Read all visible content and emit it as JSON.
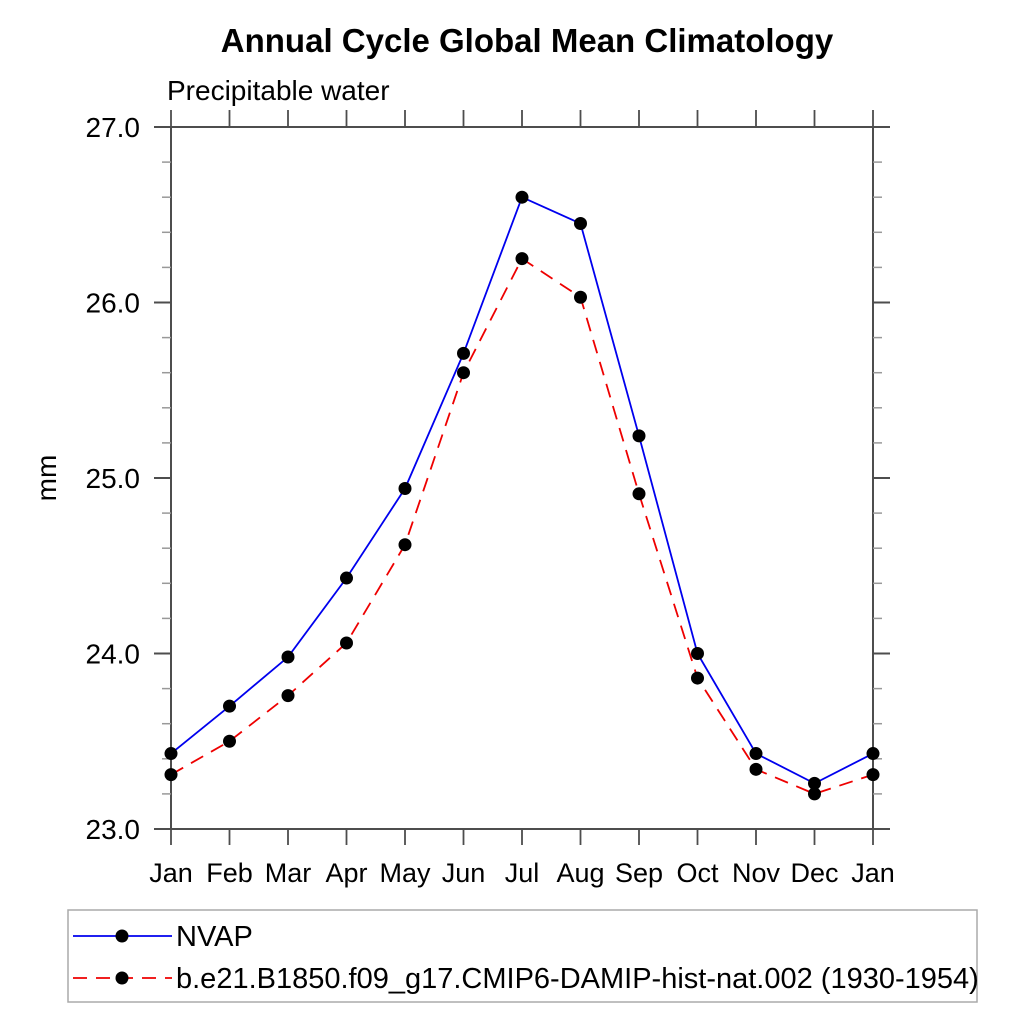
{
  "page": {
    "title": "Annual Cycle Global Mean Climatology",
    "subtitle": "Precipitable water"
  },
  "chart_data": {
    "type": "line",
    "title": "Annual Cycle Global Mean Climatology",
    "subtitle": "Precipitable water",
    "xlabel": "",
    "ylabel": "mm",
    "categories": [
      "Jan",
      "Feb",
      "Mar",
      "Apr",
      "May",
      "Jun",
      "Jul",
      "Aug",
      "Sep",
      "Oct",
      "Nov",
      "Dec",
      "Jan"
    ],
    "ylim": [
      23.0,
      27.0
    ],
    "y_major_ticks": [
      23.0,
      24.0,
      25.0,
      26.0,
      27.0
    ],
    "y_major_tick_labels": [
      "23.0",
      "24.0",
      "25.0",
      "26.0",
      "27.0"
    ],
    "y_minor_tick_interval": 0.2,
    "grid": false,
    "legend_position": "bottom-left",
    "series": [
      {
        "name": "NVAP",
        "color": "#0000ee",
        "line_style": "solid",
        "marker": "circle",
        "marker_color": "#000000",
        "values": [
          23.43,
          23.7,
          23.98,
          24.43,
          24.94,
          25.71,
          26.6,
          26.45,
          25.24,
          24.0,
          23.43,
          23.26,
          23.43
        ]
      },
      {
        "name": "b.e21.B1850.f09_g17.CMIP6-DAMIP-hist-nat.002 (1930-1954)",
        "color": "#ee0000",
        "line_style": "dashed",
        "marker": "circle",
        "marker_color": "#000000",
        "values": [
          23.31,
          23.5,
          23.76,
          24.06,
          24.62,
          25.6,
          26.25,
          26.03,
          24.91,
          23.86,
          23.34,
          23.2,
          23.31
        ]
      }
    ],
    "axis_style": {
      "spine_color": "#4d4d4d",
      "major_tick_color": "#4d4d4d",
      "minor_tick_color": "#999999",
      "legend_border_color": "#aaaaaa"
    }
  }
}
